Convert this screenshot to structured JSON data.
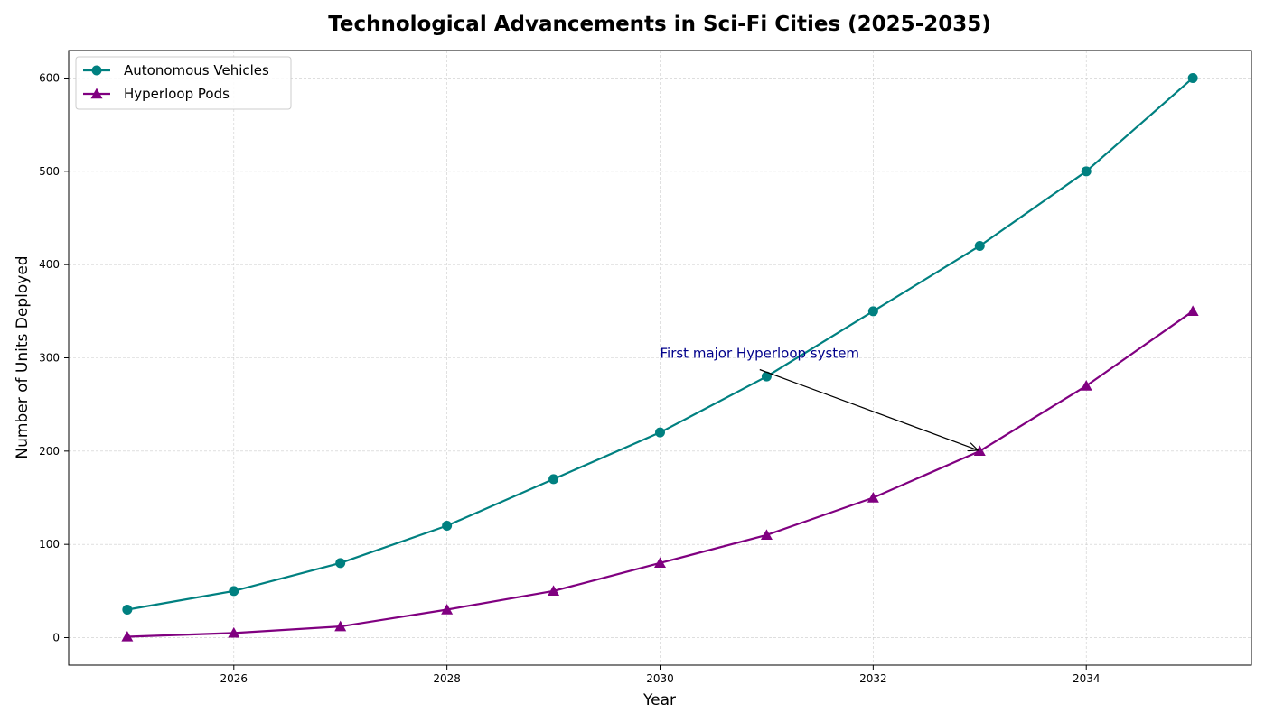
{
  "chart_data": {
    "type": "line",
    "title": "Technological Advancements in Sci-Fi Cities (2025-2035)",
    "xlabel": "Year",
    "ylabel": "Number of Units Deployed",
    "x": [
      2025,
      2026,
      2027,
      2028,
      2029,
      2030,
      2031,
      2032,
      2033,
      2034,
      2035
    ],
    "xlim": [
      2024.45,
      2035.55
    ],
    "ylim": [
      -29.5,
      629.5
    ],
    "xticks": [
      2026,
      2028,
      2030,
      2032,
      2034
    ],
    "yticks": [
      0,
      100,
      200,
      300,
      400,
      500,
      600
    ],
    "grid": true,
    "legend_position": "top-left",
    "series": [
      {
        "name": "Autonomous Vehicles",
        "values": [
          30,
          50,
          80,
          120,
          170,
          220,
          280,
          350,
          420,
          500,
          600
        ],
        "color": "#008080",
        "marker": "circle"
      },
      {
        "name": "Hyperloop Pods",
        "values": [
          1,
          5,
          12,
          30,
          50,
          80,
          110,
          150,
          200,
          270,
          350
        ],
        "color": "#800080",
        "marker": "triangle"
      }
    ],
    "annotations": [
      {
        "text": "First major Hyperloop system",
        "text_x": 2030,
        "text_y": 300,
        "point_x": 2033,
        "point_y": 200,
        "color": "#00008b"
      }
    ]
  }
}
